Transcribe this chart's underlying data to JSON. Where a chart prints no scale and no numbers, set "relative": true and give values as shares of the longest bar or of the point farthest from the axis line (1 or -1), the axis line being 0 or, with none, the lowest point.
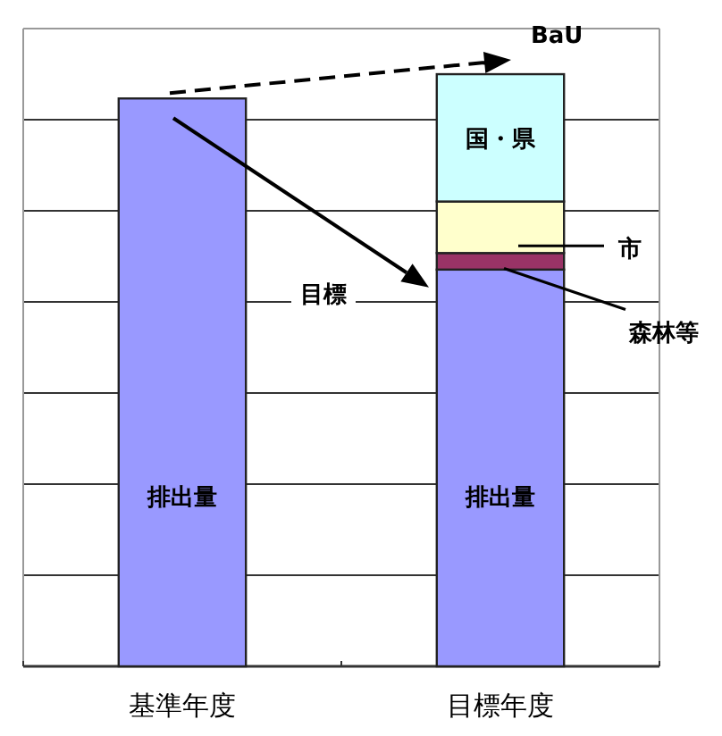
{
  "chart_data": {
    "type": "bar",
    "stacked": true,
    "relative": true,
    "grid": "y",
    "categories": [
      "基準年度",
      "目標年度"
    ],
    "series": [
      {
        "name": "排出量",
        "color": "#9999ff",
        "values": [
          0.959,
          0.67
        ]
      },
      {
        "name": "森林等",
        "color": "#993366",
        "values": [
          null,
          0.028
        ]
      },
      {
        "name": "市",
        "color": "#ffffcc",
        "values": [
          null,
          0.087
        ]
      },
      {
        "name": "国・県",
        "color": "#ccffff",
        "values": [
          null,
          0.215
        ]
      }
    ],
    "annotations": [
      "BaU",
      "目標"
    ]
  }
}
